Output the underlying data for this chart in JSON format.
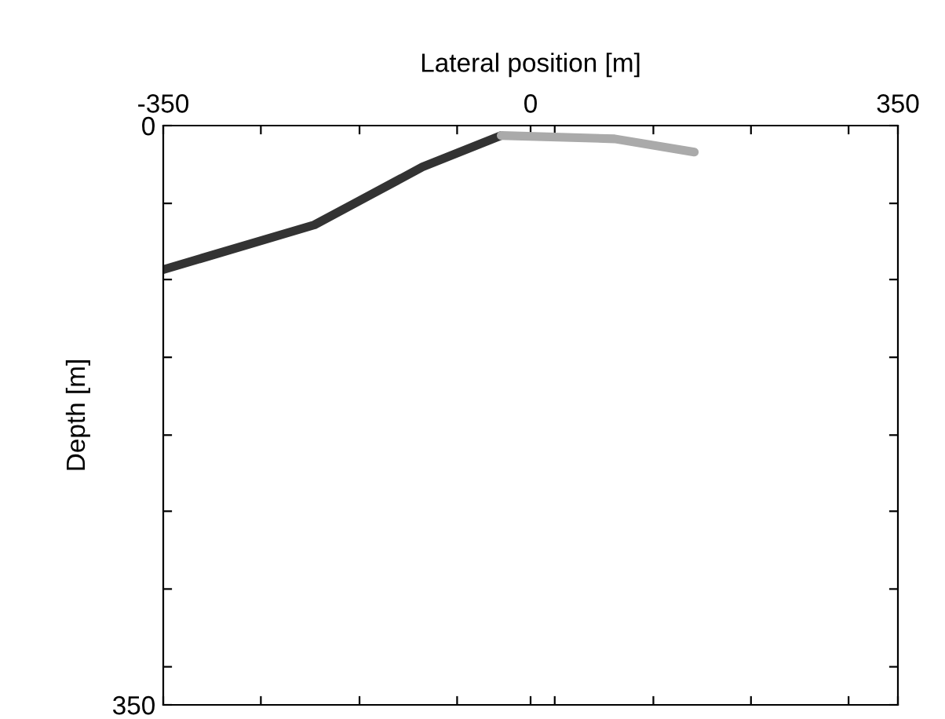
{
  "chart_data": {
    "type": "line",
    "xlabel": "Lateral position [m]",
    "ylabel": "Depth [m]",
    "xlim": [
      -350,
      350
    ],
    "ylim": [
      350,
      0
    ],
    "xticks": [
      -350,
      {
        "value": -257,
        "label": null
      },
      {
        "value": -163,
        "label": null
      },
      {
        "value": -70,
        "label": null
      },
      0,
      {
        "value": 23,
        "label": null
      },
      {
        "value": 117,
        "label": null
      },
      {
        "value": 210,
        "label": null
      },
      {
        "value": 303,
        "label": null
      },
      350
    ],
    "yticks": [
      0,
      {
        "value": 47,
        "label": null
      },
      {
        "value": 93,
        "label": null
      },
      {
        "value": 140,
        "label": null
      },
      {
        "value": 187,
        "label": null
      },
      {
        "value": 233,
        "label": null
      },
      {
        "value": 280,
        "label": null
      },
      {
        "value": 327,
        "label": null
      },
      350
    ],
    "grid": false,
    "marker": "none",
    "line_style": "solid",
    "series": [
      {
        "color": "#333333",
        "x": [
          -350,
          -206,
          -103,
          -28
        ],
        "values": [
          87,
          60,
          25,
          6
        ]
      },
      {
        "color": "#aaaaaa",
        "x": [
          -28,
          80,
          156
        ],
        "values": [
          6,
          8,
          16
        ]
      }
    ]
  }
}
